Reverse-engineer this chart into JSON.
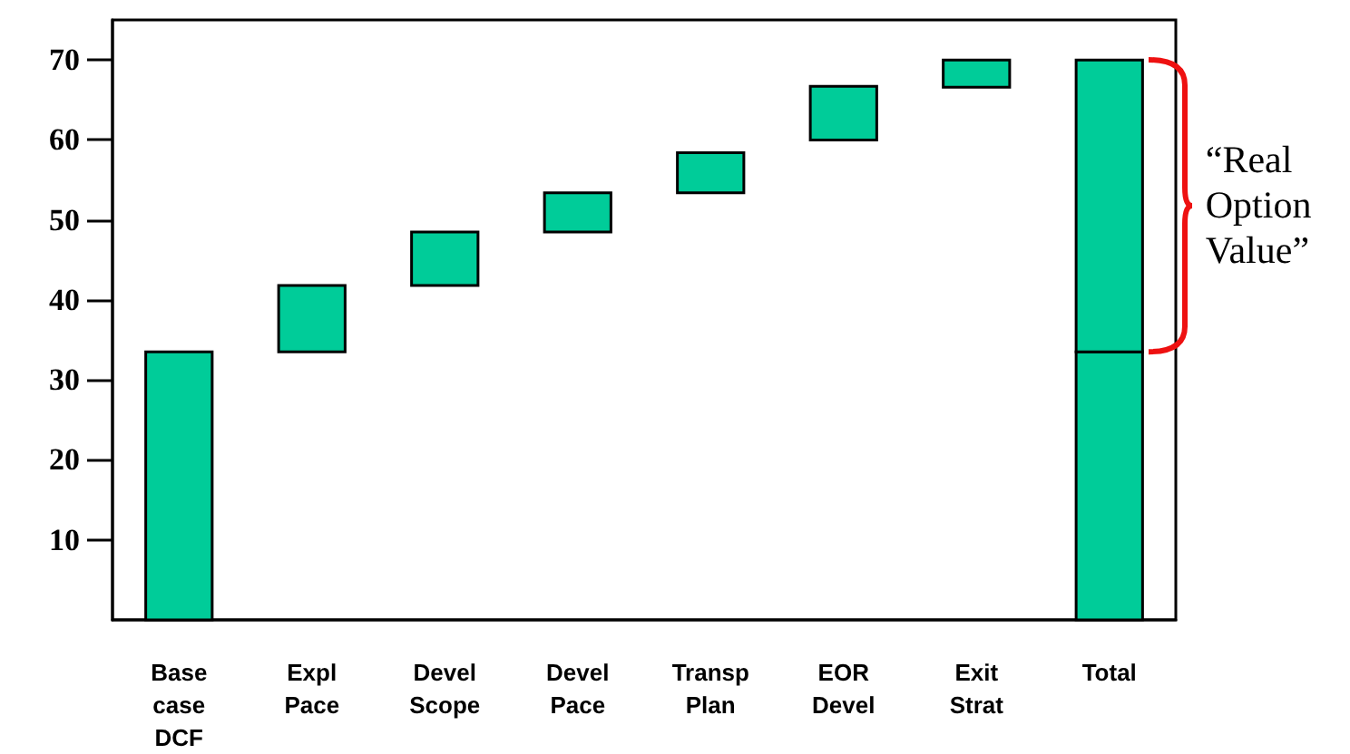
{
  "chart_data": {
    "type": "bar",
    "categories": [
      "Base\ncase\nDCF",
      "Expl\nPace",
      "Devel\nScope",
      "Devel\nPace",
      "Transp\nPlan",
      "EOR\nDevel",
      "Exit\nStrat",
      "Total"
    ],
    "series": [
      {
        "color": "#00cc99",
        "values": [
          33.5,
          8.3,
          6.7,
          4.9,
          5.0,
          6.7,
          3.4,
          33.5
        ],
        "base": [
          0,
          33.5,
          41.8,
          48.5,
          53.4,
          60.0,
          66.6,
          0
        ]
      },
      {
        "color": "#00cc99",
        "values": [
          null,
          null,
          null,
          null,
          null,
          null,
          null,
          36.5
        ],
        "base": [
          null,
          null,
          null,
          null,
          null,
          null,
          null,
          33.5
        ]
      }
    ],
    "ylim": [
      0,
      75
    ],
    "yticks": [
      10,
      20,
      30,
      40,
      50,
      60,
      70
    ],
    "grid": false,
    "annotations": [
      "“Real Option Value”"
    ]
  }
}
